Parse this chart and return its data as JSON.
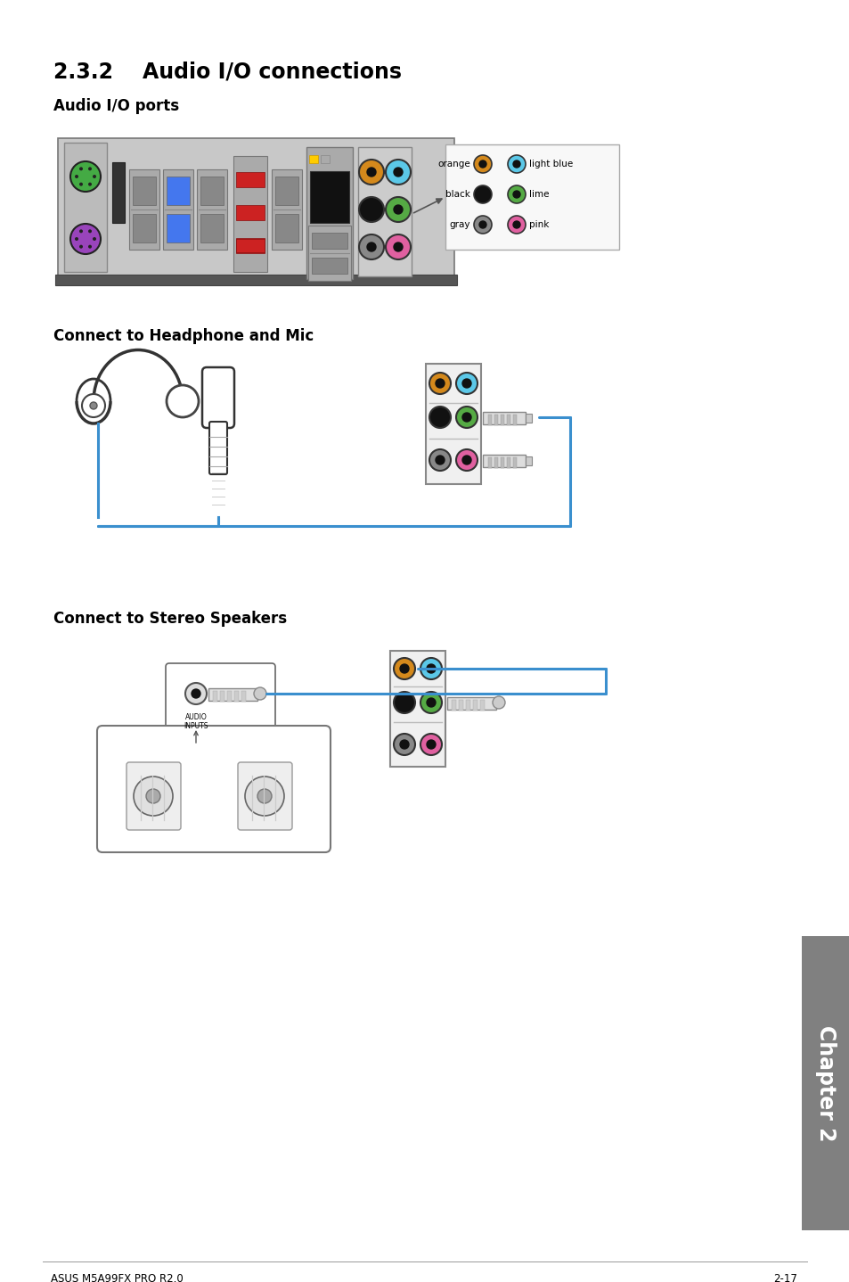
{
  "title_section": "2.3.2    Audio I/O connections",
  "subtitle1": "Audio I/O ports",
  "subtitle2": "Connect to Headphone and Mic",
  "subtitle3": "Connect to Stereo Speakers",
  "port_labels_left": [
    "orange",
    "black",
    "gray"
  ],
  "port_labels_right": [
    "light blue",
    "lime",
    "pink"
  ],
  "footer_left": "ASUS M5A99FX PRO R2.0",
  "footer_right": "2-17",
  "chapter_text": "Chapter 2",
  "bg_color": "#ffffff",
  "text_color": "#000000",
  "blue_line_color": "#3a8fce",
  "port_colors_row0": [
    "#d4891c",
    "#5bc8e8"
  ],
  "port_colors_row1": [
    "#111111",
    "#55aa44"
  ],
  "port_colors_row2": [
    "#888888",
    "#e060a0"
  ],
  "chapter_bg": "#808080"
}
